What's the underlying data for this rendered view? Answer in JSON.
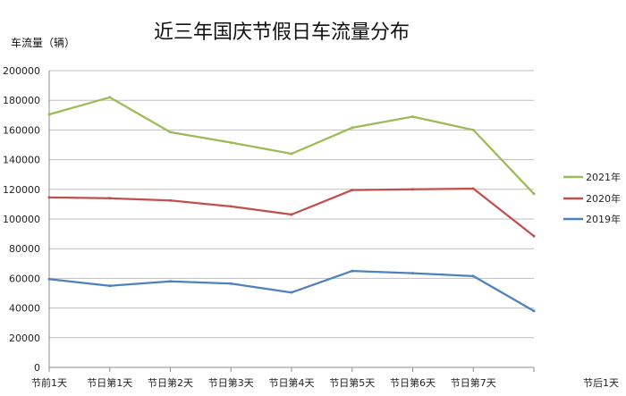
{
  "chart_data": {
    "type": "line",
    "title": "近三年国庆节假日车流量分布",
    "ylabel": "车流量（辆）",
    "xlabel": "",
    "categories": [
      "节前1天",
      "节日第1天",
      "节日第2天",
      "节日第3天",
      "节日第4天",
      "节日第5天",
      "节日第6天",
      "节日第7天",
      "节后1天"
    ],
    "ylim": [
      0,
      200000
    ],
    "yticks": [
      "0",
      "20000",
      "40000",
      "60000",
      "80000",
      "100000",
      "120000",
      "140000",
      "160000",
      "180000",
      "200000"
    ],
    "grid": true,
    "legend_position": "right",
    "series": [
      {
        "name": "2021年",
        "color": "#9bbb59",
        "values": [
          170500,
          182000,
          158500,
          151500,
          144000,
          161500,
          169000,
          160000,
          117000
        ]
      },
      {
        "name": "2020年",
        "color": "#c0504d",
        "values": [
          114500,
          114000,
          112500,
          108500,
          103000,
          119500,
          120000,
          120500,
          88500
        ]
      },
      {
        "name": "2019年",
        "color": "#4f81bd",
        "values": [
          59500,
          55000,
          58000,
          56500,
          50500,
          65000,
          63500,
          61500,
          38000
        ]
      }
    ]
  }
}
